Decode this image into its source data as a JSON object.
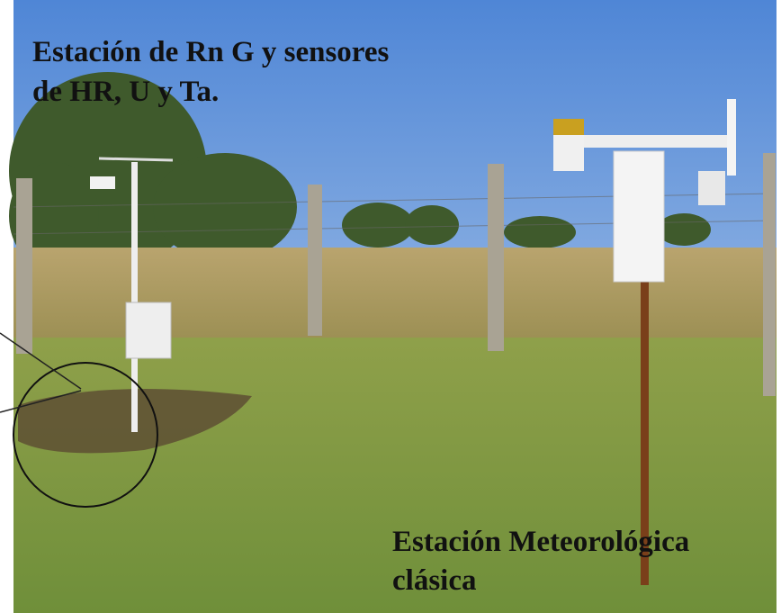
{
  "annotations": {
    "top_label": {
      "lines": [
        "Estación de Rn G y sensores",
        "de HR, U y Ta."
      ]
    },
    "bottom_label": {
      "lines": [
        "Estación Meteorológica",
        "clásica"
      ]
    }
  }
}
